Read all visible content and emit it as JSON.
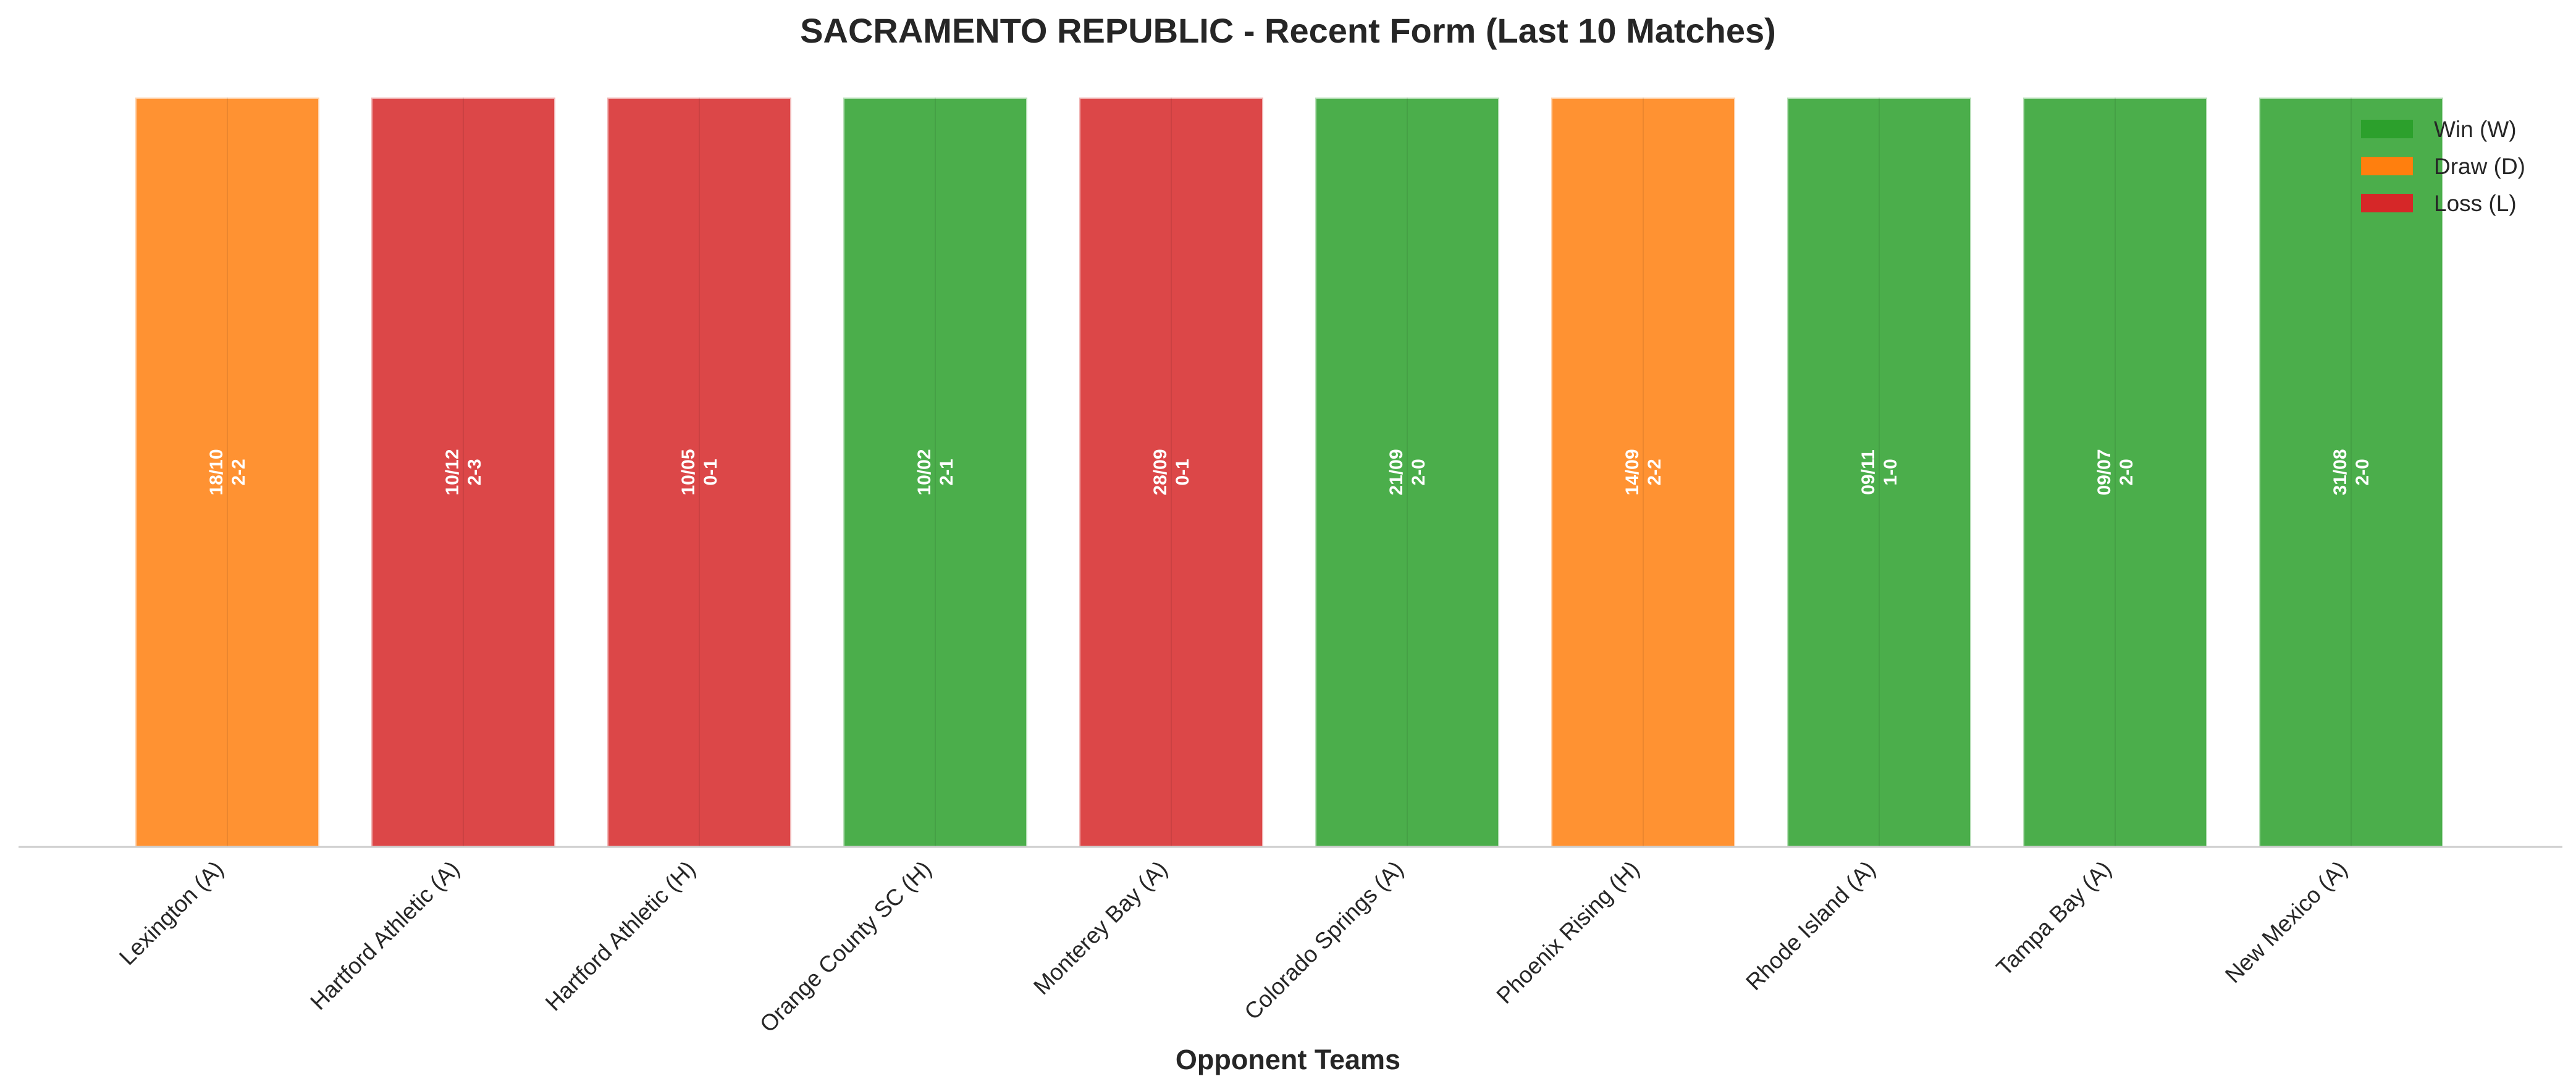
{
  "chart_data": {
    "type": "bar",
    "title": "SACRAMENTO REPUBLIC - Recent Form (Last 10 Matches)",
    "xlabel": "Opponent Teams",
    "ylabel": "",
    "ylim": [
      0,
      1
    ],
    "grid": false,
    "legend_placement": "top-right",
    "legend": [
      {
        "key": "W",
        "label": "Win (W)",
        "color": "#2ca02c"
      },
      {
        "key": "D",
        "label": "Draw (D)",
        "color": "#ff7f0e"
      },
      {
        "key": "L",
        "label": "Loss (L)",
        "color": "#d62728"
      }
    ],
    "categories": [
      "Lexington (A)",
      "Hartford Athletic (A)",
      "Hartford Athletic (H)",
      "Orange County SC (H)",
      "Monterey Bay (A)",
      "Colorado Springs (A)",
      "Phoenix Rising (H)",
      "Rhode Island (A)",
      "Tampa Bay (A)",
      "New Mexico (A)"
    ],
    "values": [
      1,
      1,
      1,
      1,
      1,
      1,
      1,
      1,
      1,
      1
    ],
    "results": [
      "D",
      "L",
      "L",
      "W",
      "L",
      "W",
      "D",
      "W",
      "W",
      "W"
    ],
    "dates": [
      "18/10",
      "10/12",
      "10/05",
      "10/02",
      "28/09",
      "21/09",
      "14/09",
      "09/11",
      "09/07",
      "31/08"
    ],
    "scores": [
      "2-2",
      "2-3",
      "0-1",
      "2-1",
      "0-1",
      "2-0",
      "2-2",
      "1-0",
      "2-0",
      "2-0"
    ]
  }
}
